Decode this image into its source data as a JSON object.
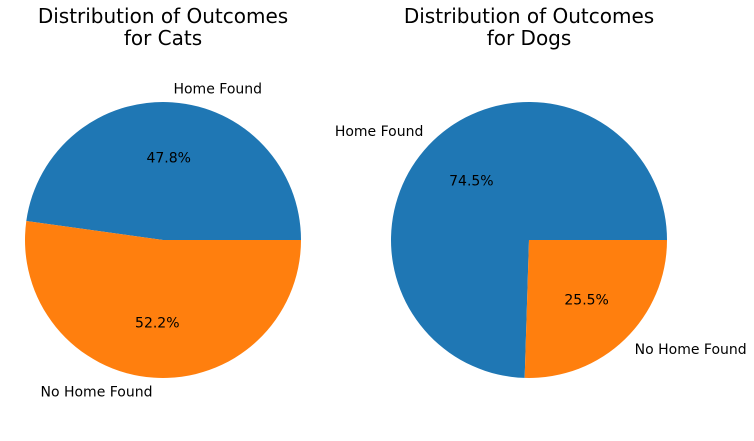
{
  "chart_data": [
    {
      "type": "pie",
      "title_lines": [
        "Distribution of Outcomes",
        "for Cats"
      ],
      "categories": [
        "Home Found",
        "No Home Found"
      ],
      "values": [
        47.8,
        52.2
      ],
      "value_labels": [
        "47.8%",
        "52.2%"
      ],
      "colors": [
        "#1f77b4",
        "#ff7f0e"
      ],
      "start_angle_deg": 0,
      "direction": "counterclockwise",
      "legend": "none"
    },
    {
      "type": "pie",
      "title_lines": [
        "Distribution of Outcomes",
        "for Dogs"
      ],
      "categories": [
        "Home Found",
        "No Home Found"
      ],
      "values": [
        74.5,
        25.5
      ],
      "value_labels": [
        "74.5%",
        "25.5%"
      ],
      "colors": [
        "#1f77b4",
        "#ff7f0e"
      ],
      "start_angle_deg": 0,
      "direction": "counterclockwise",
      "legend": "none"
    }
  ]
}
